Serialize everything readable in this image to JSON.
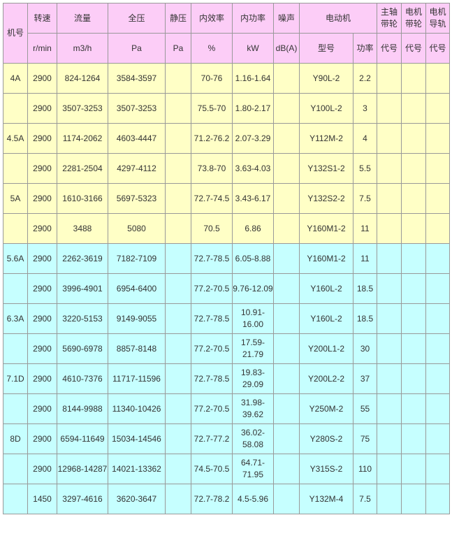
{
  "header": {
    "group": [
      "机号",
      "转速",
      "流量",
      "全压",
      "静压",
      "内效率",
      "内功率",
      "噪声",
      "电动机",
      "主轴带轮",
      "电机带轮",
      "电机导轨"
    ],
    "units": [
      "r/min",
      "m3/h",
      "Pa",
      "Pa",
      "%",
      "kW",
      "dB(A)"
    ],
    "motor_sub": [
      "型号",
      "功率"
    ],
    "code": "代号"
  },
  "rows": [
    {
      "cls": "yel",
      "c": [
        "4A",
        "2900",
        "824-1264",
        "3584-3597",
        "",
        "70-76",
        "1.16-1.64",
        "",
        "Y90L-2",
        "2.2",
        "",
        "",
        ""
      ]
    },
    {
      "cls": "yel",
      "c": [
        "",
        "2900",
        "3507-3253",
        "3507-3253",
        "",
        "75.5-70",
        "1.80-2.17",
        "",
        "Y100L-2",
        "3",
        "",
        "",
        ""
      ]
    },
    {
      "cls": "yel",
      "c": [
        "4.5A",
        "2900",
        "1174-2062",
        "4603-4447",
        "",
        "71.2-76.2",
        "2.07-3.29",
        "",
        "Y112M-2",
        "4",
        "",
        "",
        ""
      ]
    },
    {
      "cls": "yel",
      "c": [
        "",
        "2900",
        "2281-2504",
        "4297-4112",
        "",
        "73.8-70",
        "3.63-4.03",
        "",
        "Y132S1-2",
        "5.5",
        "",
        "",
        ""
      ]
    },
    {
      "cls": "yel",
      "c": [
        "5A",
        "2900",
        "1610-3166",
        "5697-5323",
        "",
        "72.7-74.5",
        "3.43-6.17",
        "",
        "Y132S2-2",
        "7.5",
        "",
        "",
        ""
      ]
    },
    {
      "cls": "yel",
      "c": [
        "",
        "2900",
        "3488",
        "5080",
        "",
        "70.5",
        "6.86",
        "",
        "Y160M1-2",
        "11",
        "",
        "",
        ""
      ]
    },
    {
      "cls": "cyn",
      "c": [
        "5.6A",
        "2900",
        "2262-3619",
        "7182-7109",
        "",
        "72.7-78.5",
        "6.05-8.88",
        "",
        "Y160M1-2",
        "11",
        "",
        "",
        ""
      ]
    },
    {
      "cls": "cyn",
      "c": [
        "",
        "2900",
        "3996-4901",
        "6954-6400",
        "",
        "77.2-70.5",
        "9.76-12.09",
        "",
        "Y160L-2",
        "18.5",
        "",
        "",
        ""
      ]
    },
    {
      "cls": "cyn",
      "c": [
        "6.3A",
        "2900",
        "3220-5153",
        "9149-9055",
        "",
        "72.7-78.5",
        "10.91-16.00",
        "",
        "Y160L-2",
        "18.5",
        "",
        "",
        ""
      ]
    },
    {
      "cls": "cyn",
      "c": [
        "",
        "2900",
        "5690-6978",
        "8857-8148",
        "",
        "77.2-70.5",
        "17.59-21.79",
        "",
        "Y200L1-2",
        "30",
        "",
        "",
        ""
      ]
    },
    {
      "cls": "cyn",
      "c": [
        "7.1D",
        "2900",
        "4610-7376",
        "11717-11596",
        "",
        "72.7-78.5",
        "19.83-29.09",
        "",
        "Y200L2-2",
        "37",
        "",
        "",
        ""
      ]
    },
    {
      "cls": "cyn",
      "c": [
        "",
        "2900",
        "8144-9988",
        "11340-10426",
        "",
        "77.2-70.5",
        "31.98-39.62",
        "",
        "Y250M-2",
        "55",
        "",
        "",
        ""
      ]
    },
    {
      "cls": "cyn",
      "c": [
        "8D",
        "2900",
        "6594-11649",
        "15034-14546",
        "",
        "72.7-77.2",
        "36.02-58.08",
        "",
        "Y280S-2",
        "75",
        "",
        "",
        ""
      ]
    },
    {
      "cls": "cyn",
      "c": [
        "",
        "2900",
        "12968-14287",
        "14021-13362",
        "",
        "74.5-70.5",
        "64.71-71.95",
        "",
        "Y315S-2",
        "110",
        "",
        "",
        ""
      ]
    },
    {
      "cls": "cyn",
      "c": [
        "",
        "1450",
        "3297-4616",
        "3620-3647",
        "",
        "72.7-78.2",
        "4.5-5.96",
        "",
        "Y132M-4",
        "7.5",
        "",
        "",
        ""
      ]
    }
  ]
}
